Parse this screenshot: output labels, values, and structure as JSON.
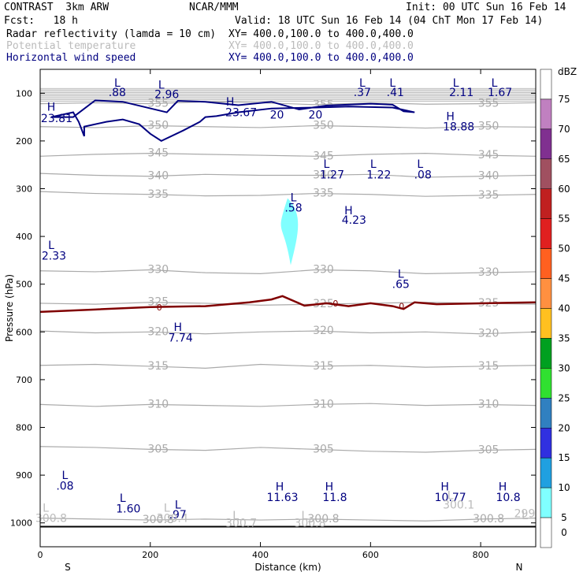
{
  "header": {
    "left_title": "CONTRAST  3km ARW",
    "center_title": "NCAR/MMM",
    "init_text": "Init: 00 UTC Sun 16 Feb 14",
    "fcst_text": "Fcst:   18 h",
    "valid_text": "Valid: 18 UTC Sun 16 Feb 14 (04 ChT Mon 17 Feb 14)",
    "line1_label": "Radar reflectivity (lamda = 10 cm)",
    "line1_xy": "XY= 400.0,100.0 to 400.0,400.0",
    "line2_label": "Potential temperature",
    "line2_xy": "XY= 400.0,100.0 to 400.0,400.0",
    "line3_label": "Horizontal wind speed",
    "line3_xy": "XY= 400.0,100.0 to 400.0,400.0"
  },
  "colors": {
    "wind_contour": "#000080",
    "theta_contour": "#aaaaaa",
    "freezing_line": "#800000",
    "radar_echo": "#80ffff"
  },
  "chart_data": {
    "type": "cross-section",
    "title": "CONTRAST 3km ARW",
    "xlabel": "Distance (km)",
    "ylabel": "Pressure (hPa)",
    "xlim": [
      0,
      900
    ],
    "ylim": [
      1050,
      50
    ],
    "x_ticks": [
      "0",
      "200",
      "400",
      "600",
      "800"
    ],
    "x_tick_values": [
      0,
      200,
      400,
      600,
      800
    ],
    "y_ticks": [
      "100",
      "200",
      "300",
      "400",
      "500",
      "600",
      "700",
      "800",
      "900",
      "1000"
    ],
    "y_tick_values": [
      100,
      200,
      300,
      400,
      500,
      600,
      700,
      800,
      900,
      1000
    ],
    "endpoint_left": "S",
    "endpoint_right": "N",
    "theta_contours": [
      {
        "label": "355",
        "p": [
          122,
          120,
          122,
          118,
          120,
          124,
          120,
          123,
          122,
          120
        ]
      },
      {
        "label": "350",
        "p": [
          170,
          172,
          168,
          170,
          172,
          168,
          170,
          173,
          170,
          171
        ]
      },
      {
        "label": "345",
        "p": [
          232,
          228,
          226,
          228,
          230,
          232,
          228,
          226,
          230,
          232
        ]
      },
      {
        "label": "340",
        "p": [
          268,
          272,
          274,
          270,
          272,
          272,
          270,
          276,
          274,
          272
        ]
      },
      {
        "label": "335",
        "p": [
          306,
          310,
          312,
          315,
          314,
          310,
          312,
          316,
          314,
          312
        ]
      },
      {
        "label": "330",
        "p": [
          472,
          474,
          470,
          476,
          478,
          470,
          472,
          478,
          476,
          474
        ]
      },
      {
        "label": "325",
        "p": [
          540,
          542,
          538,
          540,
          544,
          542,
          540,
          538,
          540,
          542
        ]
      },
      {
        "label": "320",
        "p": [
          598,
          602,
          600,
          604,
          600,
          598,
          602,
          600,
          604,
          600
        ]
      },
      {
        "label": "315",
        "p": [
          670,
          668,
          672,
          676,
          668,
          672,
          670,
          674,
          672,
          670
        ]
      },
      {
        "label": "310",
        "p": [
          752,
          756,
          752,
          754,
          756,
          752,
          750,
          754,
          752,
          754
        ]
      },
      {
        "label": "305",
        "p": [
          840,
          842,
          846,
          848,
          842,
          846,
          850,
          852,
          848,
          846
        ]
      },
      {
        "label": "300.8",
        "p": [
          990,
          992,
          994,
          992,
          994,
          992,
          994,
          996,
          992,
          990
        ]
      }
    ],
    "theta_x": [
      0,
      100,
      200,
      300,
      400,
      500,
      600,
      700,
      800,
      900
    ],
    "wind_labels": [
      {
        "text": "L",
        "x": 140,
        "p": 78
      },
      {
        "text": ".88",
        "x": 140,
        "p": 98
      },
      {
        "text": "L",
        "x": 220,
        "p": 82
      },
      {
        "text": "2.96",
        "x": 230,
        "p": 102
      },
      {
        "text": "H",
        "x": 20,
        "p": 128
      },
      {
        "text": "23.81",
        "x": 30,
        "p": 152
      },
      {
        "text": "H",
        "x": 345,
        "p": 118
      },
      {
        "text": "23.67",
        "x": 365,
        "p": 140
      },
      {
        "text": "20",
        "x": 430,
        "p": 145
      },
      {
        "text": "20",
        "x": 500,
        "p": 145
      },
      {
        "text": "L",
        "x": 585,
        "p": 78
      },
      {
        "text": ".37",
        "x": 585,
        "p": 98
      },
      {
        "text": "L",
        "x": 640,
        "p": 78
      },
      {
        "text": ".41",
        "x": 645,
        "p": 98
      },
      {
        "text": "L",
        "x": 755,
        "p": 78
      },
      {
        "text": "2.11",
        "x": 765,
        "p": 98
      },
      {
        "text": "L",
        "x": 825,
        "p": 78
      },
      {
        "text": "1.67",
        "x": 835,
        "p": 98
      },
      {
        "text": "H",
        "x": 745,
        "p": 148
      },
      {
        "text": "18.88",
        "x": 760,
        "p": 170
      },
      {
        "text": "L",
        "x": 520,
        "p": 248
      },
      {
        "text": "1.27",
        "x": 530,
        "p": 270
      },
      {
        "text": "L",
        "x": 605,
        "p": 248
      },
      {
        "text": "1.22",
        "x": 615,
        "p": 270
      },
      {
        "text": "L",
        "x": 690,
        "p": 248
      },
      {
        "text": ".08",
        "x": 695,
        "p": 270
      },
      {
        "text": "L",
        "x": 460,
        "p": 318
      },
      {
        "text": ".58",
        "x": 460,
        "p": 340
      },
      {
        "text": "H",
        "x": 560,
        "p": 345
      },
      {
        "text": "4.23",
        "x": 570,
        "p": 365
      },
      {
        "text": "L",
        "x": 20,
        "p": 418
      },
      {
        "text": "2.33",
        "x": 25,
        "p": 440
      },
      {
        "text": "L",
        "x": 655,
        "p": 478
      },
      {
        "text": ".65",
        "x": 655,
        "p": 500
      },
      {
        "text": "H",
        "x": 250,
        "p": 590
      },
      {
        "text": "7.74",
        "x": 255,
        "p": 612
      },
      {
        "text": "L",
        "x": 45,
        "p": 900
      },
      {
        "text": ".08",
        "x": 45,
        "p": 922
      },
      {
        "text": "L",
        "x": 150,
        "p": 948
      },
      {
        "text": "1.60",
        "x": 160,
        "p": 970
      },
      {
        "text": "L",
        "x": 250,
        "p": 962
      },
      {
        "text": ".97",
        "x": 250,
        "p": 982
      },
      {
        "text": "H",
        "x": 435,
        "p": 924
      },
      {
        "text": "11.63",
        "x": 440,
        "p": 946
      },
      {
        "text": "H",
        "x": 525,
        "p": 924
      },
      {
        "text": "11.8",
        "x": 535,
        "p": 946
      },
      {
        "text": "H",
        "x": 735,
        "p": 924
      },
      {
        "text": "10.77",
        "x": 745,
        "p": 946
      },
      {
        "text": "H",
        "x": 840,
        "p": 924
      },
      {
        "text": "10.8",
        "x": 850,
        "p": 946
      }
    ],
    "theta_extrema_labels": [
      {
        "text": "L",
        "x": 10,
        "p": 968
      },
      {
        "text": "300.8",
        "x": 20,
        "p": 990
      },
      {
        "text": "L",
        "x": 230,
        "p": 968
      },
      {
        "text": "300.4",
        "x": 240,
        "p": 990
      },
      {
        "text": "L",
        "x": 355,
        "p": 984
      },
      {
        "text": "300.7",
        "x": 365,
        "p": 1000
      },
      {
        "text": "L",
        "x": 480,
        "p": 984
      },
      {
        "text": "300.8",
        "x": 490,
        "p": 1000
      },
      {
        "text": "L",
        "x": 745,
        "p": 942
      },
      {
        "text": "300.1",
        "x": 760,
        "p": 962
      },
      {
        "text": "L",
        "x": 880,
        "p": 984
      },
      {
        "text": "299",
        "x": 880,
        "p": 980
      }
    ],
    "freezing_level": {
      "label": "0",
      "x": [
        0,
        100,
        200,
        300,
        380,
        420,
        440,
        460,
        480,
        520,
        560,
        600,
        640,
        660,
        680,
        720,
        800,
        900
      ],
      "p": [
        558,
        553,
        548,
        546,
        538,
        532,
        525,
        535,
        545,
        540,
        546,
        540,
        546,
        552,
        538,
        542,
        540,
        538
      ]
    },
    "jet_contour_x": [
      20,
      60,
      70,
      80,
      80,
      120,
      150,
      180,
      200,
      220,
      260,
      290,
      300,
      320,
      360,
      420,
      500,
      560,
      640,
      680,
      660,
      640,
      600,
      520,
      470,
      420,
      360,
      300,
      250,
      230,
      150,
      100,
      60,
      20
    ],
    "jet_contour_p": [
      150,
      140,
      160,
      190,
      170,
      160,
      155,
      165,
      185,
      200,
      178,
      160,
      150,
      148,
      140,
      132,
      130,
      128,
      130,
      140,
      138,
      124,
      122,
      126,
      134,
      118,
      125,
      118,
      116,
      140,
      118,
      115,
      150,
      150
    ],
    "radar_echo": {
      "x_center": 455,
      "p_top": 320,
      "p_bottom": 460,
      "dbz": 5
    },
    "colorbar": {
      "title": "dBZ",
      "ticks": [
        "75",
        "70",
        "65",
        "60",
        "55",
        "50",
        "45",
        "40",
        "35",
        "30",
        "25",
        "20",
        "15",
        "10",
        "5",
        "0"
      ],
      "colors": [
        "#ffffff",
        "#c080c0",
        "#803090",
        "#a05060",
        "#c02020",
        "#e02020",
        "#ff6020",
        "#ff9040",
        "#ffc020",
        "#00a020",
        "#30e030",
        "#3080c0",
        "#3030e0",
        "#20a0e0",
        "#80ffff",
        "#ffffff"
      ]
    }
  }
}
